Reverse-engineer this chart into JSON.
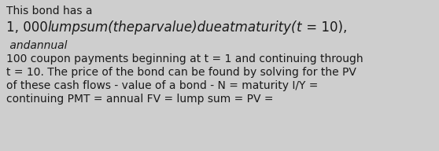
{
  "background_color": "#cecece",
  "text_color": "#1a1a1a",
  "fig_width": 5.58,
  "fig_height": 1.92,
  "dpi": 100,
  "line1": "This bond has a",
  "line2_normal1": "1, 000",
  "line2_italic": "lumpsum(theparvalue)dueatmaturity(",
  "line2_italic2": "t",
  "line2_normal2": " = 10),",
  "line3_italic": " andannual",
  "line4": "100 coupon payments beginning at t = 1 and continuing through",
  "line5": "t = 10. The price of the bond can be found by solving for the PV",
  "line6": "of these cash flows - value of a bond - N = maturity I/Y =",
  "line7": "continuing PMT = annual FV = lump sum = PV =",
  "font_small": 10.0,
  "font_large": 12.0
}
